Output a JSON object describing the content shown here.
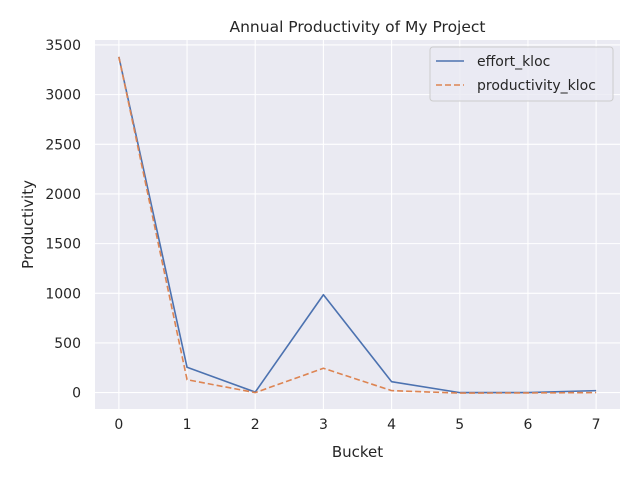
{
  "chart_data": {
    "type": "line",
    "title": "Annual Productivity of My Project",
    "xlabel": "Bucket",
    "ylabel": "Productivity",
    "x": [
      0,
      1,
      2,
      3,
      4,
      5,
      6,
      7
    ],
    "xticks": [
      0,
      1,
      2,
      3,
      4,
      5,
      6,
      7
    ],
    "yticks": [
      0,
      500,
      1000,
      1500,
      2000,
      2500,
      3000,
      3500
    ],
    "xlim": [
      -0.35,
      7.35
    ],
    "ylim": [
      -165,
      3550
    ],
    "grid": true,
    "legend_position": "top-right",
    "series": [
      {
        "name": "effort_kloc",
        "style": "solid",
        "color": "#4c72b0",
        "values": [
          3380,
          255,
          5,
          985,
          110,
          0,
          0,
          20
        ]
      },
      {
        "name": "productivity_kloc",
        "style": "dashed",
        "color": "#dd8452",
        "values": [
          3380,
          130,
          0,
          245,
          20,
          -5,
          -3,
          0
        ]
      }
    ]
  }
}
